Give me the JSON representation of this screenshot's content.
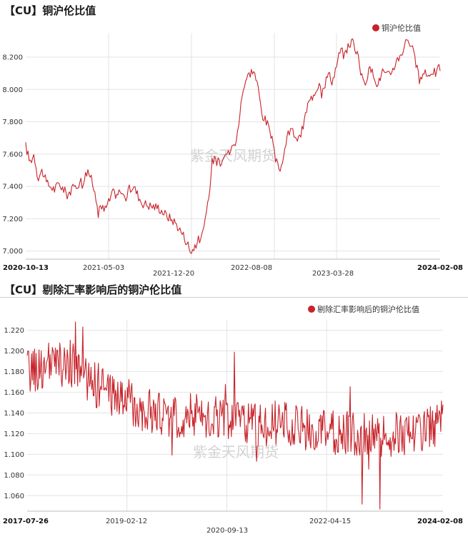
{
  "chart_data": [
    {
      "type": "line",
      "title": "【CU】铜沪伦比值",
      "legend": "铜沪伦比值",
      "legend_position": "top-right",
      "watermark": "紫金天风期货",
      "color": "#c8232a",
      "grid": true,
      "ylim": [
        6.95,
        8.35
      ],
      "y_ticks": [
        "7.000",
        "7.200",
        "7.400",
        "7.600",
        "7.800",
        "8.000",
        "8.200"
      ],
      "x_ticks": [
        {
          "label": "2020-10-13",
          "bold": true
        },
        {
          "label": "2021-05-03",
          "bold": false
        },
        {
          "label": "2021-12-20",
          "bold": false
        },
        {
          "label": "2022-08-08",
          "bold": false
        },
        {
          "label": "2023-03-28",
          "bold": false
        },
        {
          "label": "2024-02-08",
          "bold": true
        }
      ],
      "series": [
        {
          "name": "铜沪伦比值",
          "x": [
            0,
            0.01,
            0.02,
            0.03,
            0.04,
            0.05,
            0.06,
            0.07,
            0.08,
            0.1,
            0.12,
            0.14,
            0.15,
            0.16,
            0.17,
            0.18,
            0.19,
            0.2,
            0.21,
            0.22,
            0.23,
            0.24,
            0.25,
            0.26,
            0.28,
            0.3,
            0.32,
            0.34,
            0.36,
            0.38,
            0.4,
            0.42,
            0.43,
            0.44,
            0.45,
            0.46,
            0.47,
            0.48,
            0.49,
            0.5,
            0.51,
            0.52,
            0.53,
            0.54,
            0.55,
            0.56,
            0.57,
            0.58,
            0.59,
            0.6,
            0.61,
            0.62,
            0.63,
            0.64,
            0.65,
            0.66,
            0.67,
            0.68,
            0.69,
            0.7,
            0.71,
            0.72,
            0.73,
            0.74,
            0.75,
            0.76,
            0.77,
            0.78,
            0.79,
            0.8,
            0.81,
            0.82,
            0.83,
            0.84,
            0.85,
            0.86,
            0.87,
            0.88,
            0.89,
            0.9,
            0.91,
            0.92,
            0.93,
            0.94,
            0.95,
            0.96,
            0.97,
            0.98,
            0.99,
            1.0
          ],
          "values": [
            7.65,
            7.55,
            7.6,
            7.45,
            7.5,
            7.42,
            7.4,
            7.38,
            7.42,
            7.35,
            7.4,
            7.45,
            7.5,
            7.43,
            7.32,
            7.28,
            7.25,
            7.3,
            7.36,
            7.35,
            7.38,
            7.32,
            7.38,
            7.4,
            7.3,
            7.28,
            7.27,
            7.22,
            7.18,
            7.1,
            7.0,
            7.08,
            7.12,
            7.3,
            7.55,
            7.6,
            7.55,
            7.62,
            7.6,
            7.65,
            7.7,
            7.95,
            8.05,
            8.1,
            8.12,
            8.02,
            7.85,
            7.8,
            7.75,
            7.6,
            7.5,
            7.55,
            7.7,
            7.75,
            7.72,
            7.68,
            7.78,
            7.9,
            7.95,
            8.0,
            8.05,
            8.02,
            8.1,
            8.05,
            8.15,
            8.25,
            8.2,
            8.28,
            8.3,
            8.22,
            8.08,
            8.05,
            8.12,
            8.1,
            8.02,
            8.12,
            8.08,
            8.1,
            8.15,
            8.2,
            8.24,
            8.32,
            8.28,
            8.18,
            8.05,
            8.1,
            8.08,
            8.12,
            8.1,
            8.14
          ]
        }
      ]
    },
    {
      "type": "line",
      "title": "【CU】剔除汇率影响后的铜沪伦比值",
      "legend": "剔除汇率影响后的铜沪伦比值",
      "legend_position": "top-right",
      "watermark": "紫金天风期货",
      "color": "#c8232a",
      "grid": true,
      "ylim": [
        1.045,
        1.23
      ],
      "y_ticks": [
        "1.060",
        "1.080",
        "1.100",
        "1.120",
        "1.140",
        "1.160",
        "1.180",
        "1.200",
        "1.220"
      ],
      "x_ticks": [
        {
          "label": "2017-07-26",
          "bold": true
        },
        {
          "label": "2019-02-12",
          "bold": false
        },
        {
          "label": "2020-09-13",
          "bold": false
        },
        {
          "label": "2022-04-15",
          "bold": false
        },
        {
          "label": "2024-02-08",
          "bold": true
        }
      ],
      "series": [
        {
          "name": "剔除汇率影响后的铜沪伦比值",
          "x": [
            0,
            0.05,
            0.1,
            0.15,
            0.2,
            0.25,
            0.3,
            0.35,
            0.4,
            0.45,
            0.5,
            0.55,
            0.6,
            0.65,
            0.7,
            0.75,
            0.8,
            0.85,
            0.9,
            0.95,
            1.0
          ],
          "values": [
            1.18,
            1.185,
            1.19,
            1.17,
            1.16,
            1.15,
            1.14,
            1.135,
            1.14,
            1.135,
            1.13,
            1.13,
            1.13,
            1.125,
            1.12,
            1.12,
            1.12,
            1.115,
            1.12,
            1.125,
            1.13
          ]
        }
      ]
    }
  ]
}
